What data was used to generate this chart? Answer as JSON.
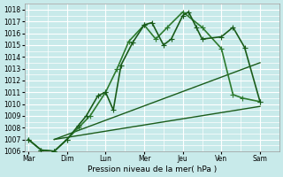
{
  "xlabel": "Pression niveau de la mer( hPa )",
  "bg_color": "#c8eaea",
  "grid_color": "#ffffff",
  "line_color_dark": "#1a5c1a",
  "line_color_light": "#2d7a2d",
  "xtick_labels": [
    "Mar",
    "Dim",
    "Lun",
    "Mer",
    "Jeu",
    "Ven",
    "Sam"
  ],
  "x_positions": [
    0,
    1,
    2,
    3,
    4,
    5,
    6
  ],
  "ylim": [
    1006,
    1018.5
  ],
  "yticks": [
    1006,
    1007,
    1008,
    1009,
    1010,
    1011,
    1012,
    1013,
    1014,
    1015,
    1016,
    1017,
    1018
  ],
  "lines": [
    {
      "x": [
        0.0,
        0.33,
        0.67,
        1.0,
        1.3,
        1.5,
        1.8,
        2.0,
        2.2,
        2.4,
        2.7,
        3.0,
        3.2,
        3.5,
        3.7,
        4.0,
        4.15,
        4.35,
        4.5,
        5.0,
        5.3,
        5.6,
        6.0
      ],
      "y": [
        1007.0,
        1006.1,
        1006.0,
        1007.0,
        1008.2,
        1009.0,
        1010.7,
        1011.0,
        1009.5,
        1013.3,
        1015.2,
        1016.7,
        1016.9,
        1015.0,
        1015.5,
        1017.5,
        1017.8,
        1016.5,
        1015.5,
        1015.7,
        1016.5,
        1014.8,
        1010.2
      ],
      "marker": "+",
      "markersize": 4,
      "linewidth": 1.2,
      "zorder": 5
    },
    {
      "x": [
        0.0,
        0.33,
        0.67,
        1.0,
        1.3,
        1.6,
        2.0,
        2.3,
        2.6,
        3.0,
        3.3,
        3.6,
        4.0,
        4.5,
        5.0,
        5.3,
        5.55,
        6.0
      ],
      "y": [
        1007.0,
        1006.1,
        1006.0,
        1007.0,
        1008.0,
        1009.0,
        1011.0,
        1013.0,
        1015.3,
        1016.7,
        1015.5,
        1016.5,
        1017.8,
        1016.5,
        1014.7,
        1010.8,
        1010.5,
        1010.2
      ],
      "marker": "+",
      "markersize": 4,
      "linewidth": 1.2,
      "zorder": 4
    },
    {
      "x": [
        0.67,
        6.0
      ],
      "y": [
        1007.0,
        1013.5
      ],
      "marker": null,
      "linewidth": 1.0,
      "zorder": 2
    },
    {
      "x": [
        0.67,
        6.0
      ],
      "y": [
        1007.0,
        1009.8
      ],
      "marker": null,
      "linewidth": 1.0,
      "zorder": 2
    }
  ]
}
